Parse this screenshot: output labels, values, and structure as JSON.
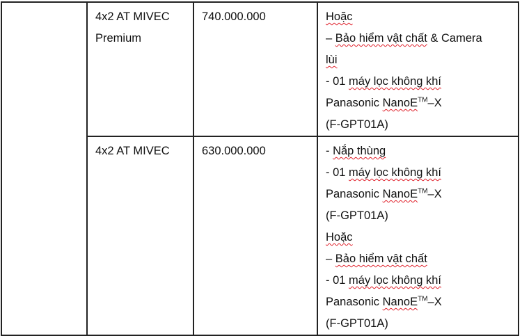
{
  "rows": [
    {
      "version": [
        "4x2  AT  MIVEC",
        "Premium"
      ],
      "price": "740.000.000",
      "offer": [
        [
          {
            "t": "Hoặc",
            "s": true
          }
        ],
        [
          {
            "t": "– ",
            "s": false
          },
          {
            "t": "Bảo hiểm vật chất",
            "s": true
          },
          {
            "t": " & Camera",
            "s": false
          }
        ],
        [
          {
            "t": "lùi",
            "s": true
          }
        ],
        [
          {
            "t": "- 01 ",
            "s": false
          },
          {
            "t": "máy lọc không khí",
            "s": true
          }
        ],
        [
          {
            "t": "Panasonic ",
            "s": false
          },
          {
            "t": "NanoE",
            "s": true
          },
          {
            "t": "TM",
            "s": false,
            "sup": true
          },
          {
            "t": "–X",
            "s": false
          }
        ],
        [
          {
            "t": "(F-GPT01A)",
            "s": false
          }
        ]
      ]
    },
    {
      "version": [
        "4x2 AT MIVEC"
      ],
      "price": "630.000.000",
      "offer": [
        [
          {
            "t": "- ",
            "s": false
          },
          {
            "t": "Nắp thùng",
            "s": true
          }
        ],
        [
          {
            "t": "- 01 ",
            "s": false
          },
          {
            "t": "máy lọc không khí",
            "s": true
          }
        ],
        [
          {
            "t": "Panasonic ",
            "s": false
          },
          {
            "t": "NanoE",
            "s": true
          },
          {
            "t": "TM",
            "s": false,
            "sup": true
          },
          {
            "t": "–X",
            "s": false
          }
        ],
        [
          {
            "t": "(F-GPT01A)",
            "s": false
          }
        ],
        [
          {
            "t": "Hoặc",
            "s": true
          }
        ],
        [
          {
            "t": "– ",
            "s": false
          },
          {
            "t": "Bảo hiểm vật chất",
            "s": true
          }
        ],
        [
          {
            "t": "- 01 ",
            "s": false
          },
          {
            "t": "máy lọc không khí",
            "s": true
          }
        ],
        [
          {
            "t": "Panasonic ",
            "s": false
          },
          {
            "t": "NanoE",
            "s": true
          },
          {
            "t": "TM",
            "s": false,
            "sup": true
          },
          {
            "t": "–X",
            "s": false
          }
        ],
        [
          {
            "t": "(F-GPT01A)",
            "s": false
          }
        ]
      ]
    }
  ],
  "colors": {
    "border": "#222222",
    "spellcheck_underline": "#e0202a"
  }
}
